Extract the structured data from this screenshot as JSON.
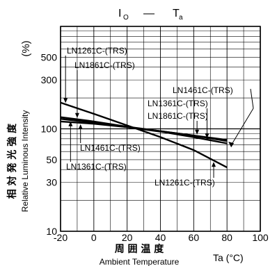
{
  "chart_data": {
    "type": "line",
    "title": {
      "main": "I",
      "main_sub": "O",
      "dash": "—",
      "var": "T",
      "var_sub": "a"
    },
    "ylabel": {
      "percent": "(%)",
      "ja": "相 対 発 光 強 度",
      "en": "Relative Luminous Intensity"
    },
    "xlabel": {
      "ja": "周 囲 温 度",
      "en": "Ambient Temperature",
      "unit": "Ta (°C)"
    },
    "x_ticks": [
      "-20",
      "0",
      "20",
      "40",
      "60",
      "80",
      "100"
    ],
    "y_ticks": [
      "500",
      "300",
      "100",
      "50",
      "30",
      "10"
    ],
    "xlim": [
      -20,
      100
    ],
    "ylim": [
      10,
      1000
    ],
    "yscale": "log",
    "grid": true,
    "series": [
      {
        "name": "LN1261C-(TRS)",
        "x": [
          -20,
          0,
          20,
          40,
          60,
          80
        ],
        "y": [
          180,
          140,
          108,
          83,
          62,
          42
        ]
      },
      {
        "name": "LN1861C-(TRS)",
        "x": [
          -20,
          0,
          20,
          40,
          60,
          80
        ],
        "y": [
          130,
          118,
          105,
          95,
          86,
          78
        ]
      },
      {
        "name": "LN1461C-(TRS)",
        "x": [
          -20,
          0,
          20,
          40,
          60,
          80
        ],
        "y": [
          118,
          112,
          104,
          95,
          86,
          76
        ]
      },
      {
        "name": "LN1361C-(TRS)",
        "x": [
          -20,
          0,
          20,
          40,
          60,
          80
        ],
        "y": [
          125,
          115,
          104,
          94,
          83,
          72
        ]
      }
    ],
    "labels": [
      {
        "text": "LN1261C-(TRS)",
        "target": "LN1261C-(TRS)"
      },
      {
        "text": "LN1861C-(TRS)",
        "target": "LN1861C-(TRS)"
      },
      {
        "text": "LN1461C-(TRS)",
        "target": "LN1461C-(TRS)"
      },
      {
        "text": "LN1361C-(TRS)",
        "target": "LN1361C-(TRS)"
      },
      {
        "text": "LN1861C-(TRS)",
        "target": "LN1861C-(TRS)"
      },
      {
        "text": "LN1461C-(TRS)",
        "target": "LN1461C-(TRS)"
      },
      {
        "text": "LN1361C-(TRS)",
        "target": "LN1361C-(TRS)"
      },
      {
        "text": "LN1261C-(TRS)",
        "target": "LN1261C-(TRS)"
      }
    ]
  }
}
